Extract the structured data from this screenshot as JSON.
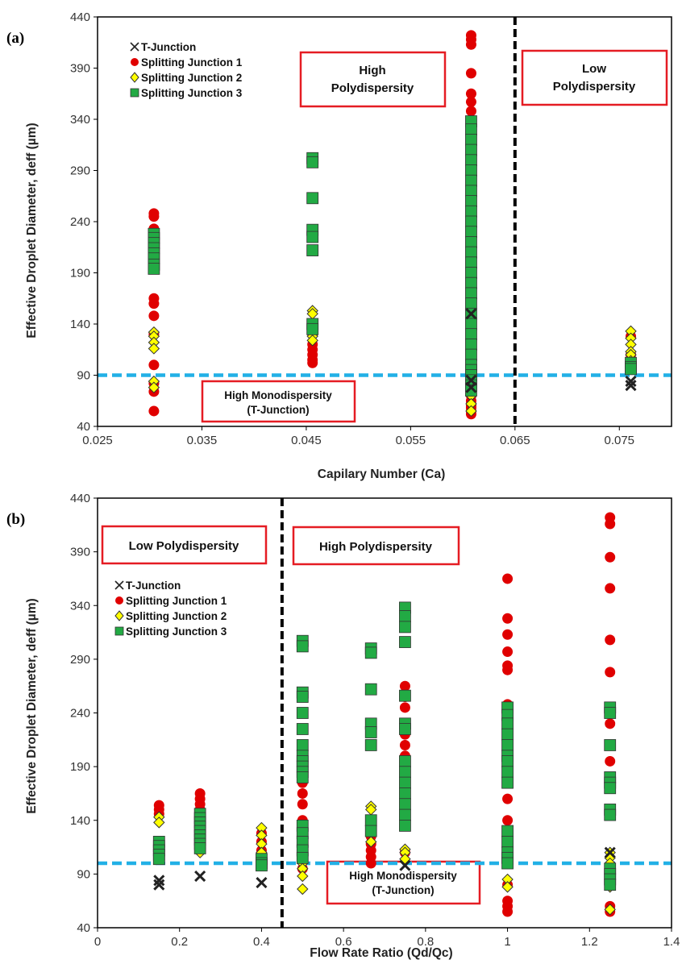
{
  "colors": {
    "t_junction": "#222222",
    "splitting_junction_1": "#e00000",
    "splitting_junction_2": "#ffff00",
    "splitting_junction_3": "#22aa44",
    "threshold_line": "#22b0e6",
    "divider_line": "#000000",
    "box_border": "#e51c23"
  },
  "chart_data": [
    {
      "type": "scatter",
      "panel_label": "(a)",
      "xlabel": "Capilary Number (Ca)",
      "ylabel": "Effective Droplet Diameter, deff (µm)",
      "xlim": [
        0.025,
        0.08
      ],
      "ylim": [
        40,
        440
      ],
      "xticks": [
        "0.025",
        "0.035",
        "0.045",
        "0.055",
        "0.065",
        "0.075"
      ],
      "yticks": [
        "40",
        "90",
        "140",
        "190",
        "240",
        "290",
        "340",
        "390",
        "440"
      ],
      "grid": false,
      "legend_position": "top-left",
      "legend": [
        "T-Junction",
        "Splitting Junction 1",
        "Splitting Junction 2",
        "Splitting Junction 3"
      ],
      "threshold_y": 90,
      "divider_x": 0.065,
      "annotations": {
        "high_poly": [
          "High",
          "Polydispersity"
        ],
        "low_poly": [
          "Low",
          "Polydispersity"
        ],
        "mono": [
          "High Monodispersity",
          "(T-Junction)"
        ]
      },
      "series": [
        {
          "name": "T-Junction",
          "marker": "x",
          "x": [
            0.0608,
            0.0608,
            0.0608,
            0.0761,
            0.0761
          ],
          "y": [
            78,
            85,
            150,
            80,
            84
          ]
        },
        {
          "name": "Splitting Junction 1",
          "marker": "circle",
          "x": [
            0.0304,
            0.0304,
            0.0304,
            0.0304,
            0.0304,
            0.0304,
            0.0304,
            0.0304,
            0.0304,
            0.0304,
            0.0304,
            0.0304,
            0.0304,
            0.0304,
            0.0456,
            0.0456,
            0.0456,
            0.0456,
            0.0456,
            0.0456,
            0.0456,
            0.0608,
            0.0608,
            0.0608,
            0.0608,
            0.0608,
            0.0608,
            0.0608,
            0.0608,
            0.0608,
            0.0608,
            0.0608,
            0.0608,
            0.0608,
            0.0608,
            0.0608,
            0.0608,
            0.0608,
            0.0608,
            0.0608,
            0.0608,
            0.0608,
            0.0608,
            0.0608,
            0.0608,
            0.0608,
            0.0608,
            0.0608,
            0.0608,
            0.0608,
            0.0608,
            0.0761,
            0.0761,
            0.0761
          ],
          "y": [
            248,
            245,
            233,
            225,
            210,
            196,
            165,
            160,
            148,
            130,
            100,
            82,
            74,
            55,
            140,
            130,
            120,
            115,
            110,
            105,
            102,
            422,
            418,
            413,
            385,
            365,
            357,
            348,
            308,
            285,
            280,
            260,
            240,
            220,
            200,
            180,
            160,
            140,
            120,
            110,
            100,
            90,
            80,
            75,
            70,
            65,
            62,
            60,
            58,
            55,
            52,
            128,
            110,
            104
          ]
        },
        {
          "name": "Splitting Junction 2",
          "marker": "diamond",
          "x": [
            0.0304,
            0.0304,
            0.0304,
            0.0304,
            0.0304,
            0.0304,
            0.0456,
            0.0456,
            0.0456,
            0.0456,
            0.0608,
            0.0608,
            0.0608,
            0.0608,
            0.0608,
            0.0608,
            0.0608,
            0.0761,
            0.0761,
            0.0761,
            0.0761,
            0.0761,
            0.0761
          ],
          "y": [
            132,
            128,
            122,
            116,
            84,
            78,
            153,
            150,
            128,
            124,
            100,
            95,
            90,
            78,
            70,
            62,
            55,
            133,
            126,
            120,
            113,
            110,
            104
          ]
        },
        {
          "name": "Splitting Junction 3",
          "marker": "square",
          "x": [
            0.0304,
            0.0304,
            0.0304,
            0.0304,
            0.0304,
            0.0304,
            0.0304,
            0.0304,
            0.0456,
            0.0456,
            0.0456,
            0.0456,
            0.0456,
            0.0456,
            0.0456,
            0.0456,
            0.0608,
            0.0608,
            0.0608,
            0.0608,
            0.0608,
            0.0608,
            0.0608,
            0.0608,
            0.0608,
            0.0608,
            0.0608,
            0.0608,
            0.0608,
            0.0608,
            0.0608,
            0.0608,
            0.0608,
            0.0608,
            0.0608,
            0.0608,
            0.0608,
            0.0608,
            0.0608,
            0.0608,
            0.0608,
            0.0608,
            0.0608,
            0.0608,
            0.0608,
            0.0608,
            0.0761,
            0.0761,
            0.0761
          ],
          "y": [
            228,
            224,
            219,
            214,
            209,
            204,
            198,
            194,
            302,
            298,
            263,
            232,
            225,
            212,
            140,
            135,
            338,
            330,
            320,
            310,
            300,
            290,
            280,
            270,
            260,
            250,
            240,
            230,
            220,
            210,
            200,
            190,
            180,
            170,
            160,
            150,
            140,
            130,
            120,
            110,
            100,
            95,
            90,
            85,
            80,
            75,
            102,
            98,
            96
          ]
        }
      ]
    },
    {
      "type": "scatter",
      "panel_label": "(b)",
      "xlabel": "Flow Rate Ratio (Qd/Qc)",
      "ylabel": "Effective Droplet Diameter, deff (µm)",
      "xlim": [
        0,
        1.4
      ],
      "ylim": [
        40,
        440
      ],
      "xticks": [
        "0",
        "0.2",
        "0.4",
        "0.6",
        "0.8",
        "1",
        "1.2",
        "1.4"
      ],
      "yticks": [
        "40",
        "90",
        "140",
        "190",
        "240",
        "290",
        "340",
        "390",
        "440"
      ],
      "grid": false,
      "legend_position": "left",
      "legend": [
        "T-Junction",
        "Splitting Junction 1",
        "Splitting Junction 2",
        "Splitting Junction 3"
      ],
      "threshold_y": 100,
      "divider_x": 0.45,
      "annotations": {
        "low_poly": [
          "Low Polydispersity"
        ],
        "high_poly": [
          "High Polydispersity"
        ],
        "mono": [
          "High Monodispersity",
          "(T-Junction)"
        ]
      },
      "series": [
        {
          "name": "T-Junction",
          "marker": "x",
          "x": [
            0.15,
            0.15,
            0.25,
            0.4,
            0.75,
            1.25
          ],
          "y": [
            80,
            84,
            88,
            82,
            98,
            110
          ]
        },
        {
          "name": "Splitting Junction 1",
          "marker": "circle",
          "x": [
            0.15,
            0.15,
            0.15,
            0.25,
            0.25,
            0.25,
            0.25,
            0.4,
            0.4,
            0.4,
            0.5,
            0.5,
            0.5,
            0.5,
            0.5,
            0.5,
            0.5,
            0.5,
            0.667,
            0.667,
            0.667,
            0.667,
            0.667,
            0.75,
            0.75,
            0.75,
            0.75,
            0.75,
            0.75,
            0.75,
            0.75,
            0.75,
            1,
            1,
            1,
            1,
            1,
            1,
            1,
            1,
            1,
            1,
            1,
            1,
            1,
            1,
            1,
            1,
            1,
            1,
            1,
            1.25,
            1.25,
            1.25,
            1.25,
            1.25,
            1.25,
            1.25,
            1.25,
            1.25,
            1.25,
            1.25,
            1.25
          ],
          "y": [
            154,
            150,
            146,
            165,
            160,
            155,
            150,
            128,
            120,
            112,
            180,
            175,
            165,
            155,
            140,
            125,
            110,
            95,
            125,
            118,
            112,
            106,
            100,
            265,
            255,
            245,
            220,
            210,
            200,
            190,
            170,
            110,
            365,
            328,
            313,
            297,
            284,
            280,
            248,
            240,
            220,
            200,
            180,
            160,
            140,
            120,
            100,
            80,
            65,
            60,
            55,
            422,
            416,
            385,
            356,
            308,
            278,
            230,
            210,
            195,
            180,
            60,
            55
          ]
        },
        {
          "name": "Splitting Junction 2",
          "marker": "diamond",
          "x": [
            0.15,
            0.15,
            0.25,
            0.25,
            0.25,
            0.4,
            0.4,
            0.4,
            0.4,
            0.5,
            0.5,
            0.5,
            0.5,
            0.667,
            0.667,
            0.667,
            0.75,
            0.75,
            0.75,
            1,
            1,
            1,
            1,
            1,
            1,
            1,
            1,
            1.25,
            1.25,
            1.25,
            1.25,
            1.25,
            1.25
          ],
          "y": [
            143,
            138,
            132,
            114,
            110,
            133,
            126,
            118,
            110,
            100,
            95,
            88,
            76,
            153,
            150,
            120,
            113,
            110,
            104,
            130,
            125,
            122,
            115,
            108,
            100,
            85,
            78,
            110,
            105,
            100,
            90,
            78,
            57
          ]
        },
        {
          "name": "Splitting Junction 3",
          "marker": "square",
          "x": [
            0.15,
            0.15,
            0.15,
            0.15,
            0.15,
            0.25,
            0.25,
            0.25,
            0.25,
            0.25,
            0.25,
            0.25,
            0.25,
            0.25,
            0.4,
            0.4,
            0.4,
            0.5,
            0.5,
            0.5,
            0.5,
            0.5,
            0.5,
            0.5,
            0.5,
            0.5,
            0.5,
            0.5,
            0.5,
            0.5,
            0.5,
            0.5,
            0.5,
            0.5,
            0.667,
            0.667,
            0.667,
            0.667,
            0.667,
            0.667,
            0.667,
            0.667,
            0.75,
            0.75,
            0.75,
            0.75,
            0.75,
            0.75,
            0.75,
            0.75,
            0.75,
            0.75,
            0.75,
            0.75,
            0.75,
            0.75,
            1,
            1,
            1,
            1,
            1,
            1,
            1,
            1,
            1,
            1,
            1,
            1,
            1,
            1,
            1.25,
            1.25,
            1.25,
            1.25,
            1.25,
            1.25,
            1.25,
            1.25,
            1.25,
            1.25,
            1.25,
            1.25
          ],
          "y": [
            120,
            116,
            112,
            108,
            104,
            146,
            142,
            138,
            134,
            130,
            126,
            122,
            118,
            114,
            104,
            100,
            98,
            307,
            302,
            259,
            255,
            240,
            225,
            210,
            200,
            195,
            190,
            185,
            180,
            135,
            128,
            120,
            112,
            105,
            300,
            296,
            262,
            230,
            222,
            210,
            140,
            130,
            338,
            330,
            320,
            306,
            256,
            230,
            225,
            195,
            185,
            175,
            165,
            155,
            145,
            135,
            245,
            238,
            230,
            220,
            210,
            200,
            195,
            185,
            175,
            130,
            120,
            110,
            105,
            100,
            245,
            240,
            210,
            180,
            175,
            170,
            150,
            145,
            95,
            90,
            85,
            80
          ]
        }
      ]
    }
  ]
}
